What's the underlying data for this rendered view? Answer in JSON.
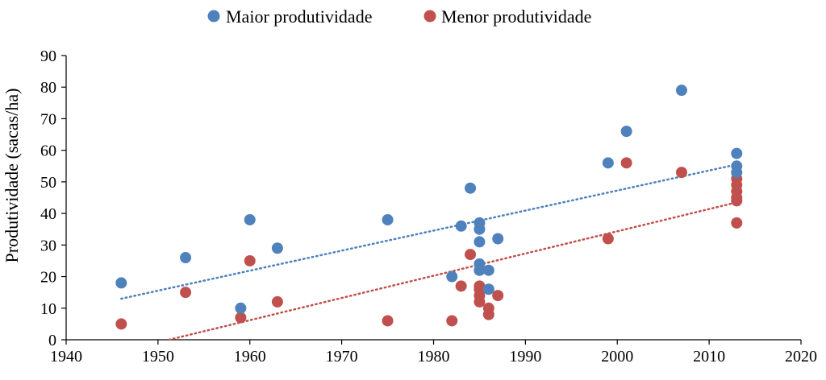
{
  "chart_data": {
    "type": "scatter",
    "title": "",
    "xlabel": "",
    "ylabel": "Produtividade (sacas/ha)",
    "xlim": [
      1940,
      2020
    ],
    "ylim": [
      0,
      90
    ],
    "x_ticks": [
      1940,
      1950,
      1960,
      1970,
      1980,
      1990,
      2000,
      2010,
      2020
    ],
    "y_ticks": [
      0,
      10,
      20,
      30,
      40,
      50,
      60,
      70,
      80,
      90
    ],
    "grid": false,
    "legend_position": "top",
    "series": [
      {
        "name": "Maior produtividade",
        "color": "#4f81bd",
        "points": [
          [
            1946,
            18
          ],
          [
            1953,
            26
          ],
          [
            1959,
            10
          ],
          [
            1960,
            38
          ],
          [
            1963,
            29
          ],
          [
            1975,
            38
          ],
          [
            1982,
            20
          ],
          [
            1983,
            36
          ],
          [
            1984,
            48
          ],
          [
            1985,
            37
          ],
          [
            1985,
            35
          ],
          [
            1985,
            31
          ],
          [
            1985,
            24
          ],
          [
            1985,
            22
          ],
          [
            1986,
            22
          ],
          [
            1986,
            16
          ],
          [
            1987,
            32
          ],
          [
            1999,
            56
          ],
          [
            2001,
            66
          ],
          [
            2007,
            79
          ],
          [
            2013,
            59
          ],
          [
            2013,
            55
          ],
          [
            2013,
            53
          ]
        ],
        "trendline": {
          "from": [
            1946,
            13
          ],
          "to": [
            2013,
            55.5
          ],
          "style": "dotted"
        }
      },
      {
        "name": "Menor produtividade",
        "color": "#c0504d",
        "points": [
          [
            1946,
            5
          ],
          [
            1953,
            15
          ],
          [
            1959,
            7
          ],
          [
            1960,
            25
          ],
          [
            1963,
            12
          ],
          [
            1975,
            6
          ],
          [
            1982,
            6
          ],
          [
            1983,
            17
          ],
          [
            1984,
            27
          ],
          [
            1985,
            22
          ],
          [
            1985,
            17
          ],
          [
            1985,
            16
          ],
          [
            1985,
            14
          ],
          [
            1985,
            12
          ],
          [
            1986,
            10
          ],
          [
            1986,
            8
          ],
          [
            1987,
            14
          ],
          [
            1999,
            32
          ],
          [
            2001,
            56
          ],
          [
            2007,
            53
          ],
          [
            2013,
            51
          ],
          [
            2013,
            49
          ],
          [
            2013,
            47
          ],
          [
            2013,
            45
          ],
          [
            2013,
            44
          ],
          [
            2013,
            37
          ]
        ],
        "trendline": {
          "from": [
            1951.2,
            0
          ],
          "to": [
            2013,
            43.5
          ],
          "style": "dotted"
        }
      }
    ]
  }
}
